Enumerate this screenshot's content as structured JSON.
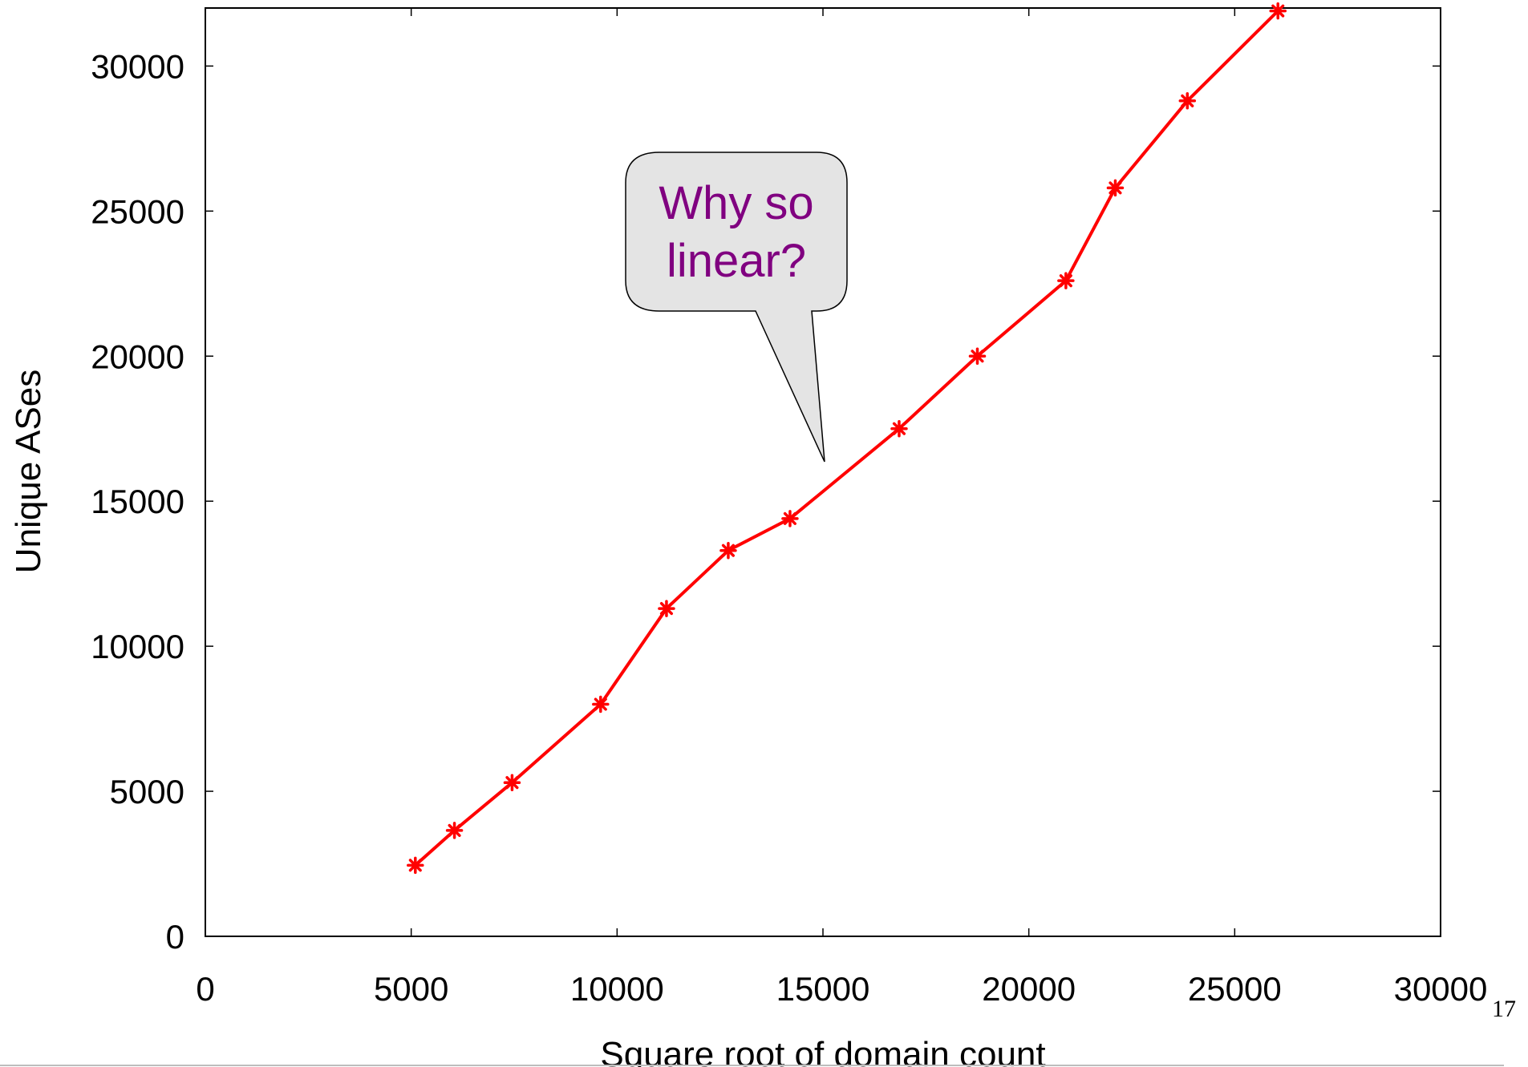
{
  "chart_data": {
    "type": "line",
    "xlabel": "Square root of domain count",
    "ylabel": "Unique ASes",
    "xlim": [
      0,
      30000
    ],
    "ylim": [
      0,
      32000
    ],
    "x_ticks": [
      0,
      5000,
      10000,
      15000,
      20000,
      25000,
      30000
    ],
    "y_ticks": [
      0,
      5000,
      10000,
      15000,
      20000,
      25000,
      30000
    ],
    "grid": false,
    "legend": "none",
    "series": [
      {
        "color": "#ff0000",
        "marker": "asterisk",
        "x": [
          5100,
          6050,
          7450,
          9600,
          11200,
          12700,
          14200,
          16850,
          18750,
          20900,
          22100,
          23850,
          26050
        ],
        "y": [
          2450,
          3650,
          5300,
          8000,
          11300,
          13300,
          14400,
          17500,
          20000,
          22600,
          25800,
          28800,
          31900
        ]
      }
    ],
    "annotations": [
      {
        "text_lines": [
          "Why so",
          "linear?"
        ],
        "color": "#800080",
        "points_to": [
          15000,
          16300
        ]
      }
    ]
  },
  "slide_number": "17"
}
